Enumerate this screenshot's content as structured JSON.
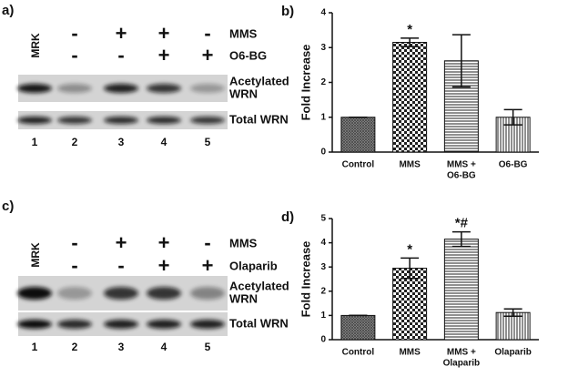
{
  "blots": [
    {
      "panel": "a)",
      "marker": "MRK",
      "treatments": [
        {
          "name": "MMS",
          "signs": [
            "-",
            "+",
            "+",
            "-"
          ]
        },
        {
          "name": "O6-BG",
          "signs": [
            "-",
            "-",
            "+",
            "+"
          ]
        }
      ],
      "bands": [
        [
          "Acetylated",
          "WRN"
        ],
        [
          "Total WRN"
        ]
      ],
      "lanes": [
        "1",
        "2",
        "3",
        "4",
        "5"
      ]
    },
    {
      "panel": "c)",
      "marker": "MRK",
      "treatments": [
        {
          "name": "MMS",
          "signs": [
            "-",
            "+",
            "+",
            "-"
          ]
        },
        {
          "name": "Olaparib",
          "signs": [
            "-",
            "-",
            "+",
            "+"
          ]
        }
      ],
      "bands": [
        [
          "Acetylated",
          "WRN"
        ],
        [
          "Total WRN"
        ]
      ],
      "lanes": [
        "1",
        "2",
        "3",
        "4",
        "5"
      ]
    }
  ],
  "chart_data": [
    {
      "type": "bar",
      "panel": "b)",
      "y_label": "Fold Increase",
      "categories": [
        [
          "Control"
        ],
        [
          "MMS"
        ],
        [
          "MMS +",
          "O6-BG"
        ],
        [
          "O6-BG"
        ]
      ],
      "values": [
        1.0,
        3.15,
        2.62,
        1.0
      ],
      "errors": [
        0,
        0.12,
        0.75,
        0.22
      ],
      "annotations": [
        {
          "text": "*",
          "bar": 1
        }
      ],
      "ylim": [
        0,
        4
      ],
      "yticks": [
        0,
        1,
        2,
        3,
        4
      ]
    },
    {
      "type": "bar",
      "panel": "d)",
      "y_label": "Fold Increase",
      "categories": [
        [
          "Control"
        ],
        [
          "MMS"
        ],
        [
          "MMS +",
          "Olaparib"
        ],
        [
          "Olaparib"
        ]
      ],
      "values": [
        1.0,
        2.95,
        4.15,
        1.12
      ],
      "errors": [
        0,
        0.42,
        0.3,
        0.15
      ],
      "annotations": [
        {
          "text": "*",
          "bar": 1
        },
        {
          "text": "*#",
          "bar": 2
        }
      ],
      "ylim": [
        0,
        5
      ],
      "yticks": [
        0,
        1,
        2,
        3,
        4,
        5
      ]
    }
  ]
}
